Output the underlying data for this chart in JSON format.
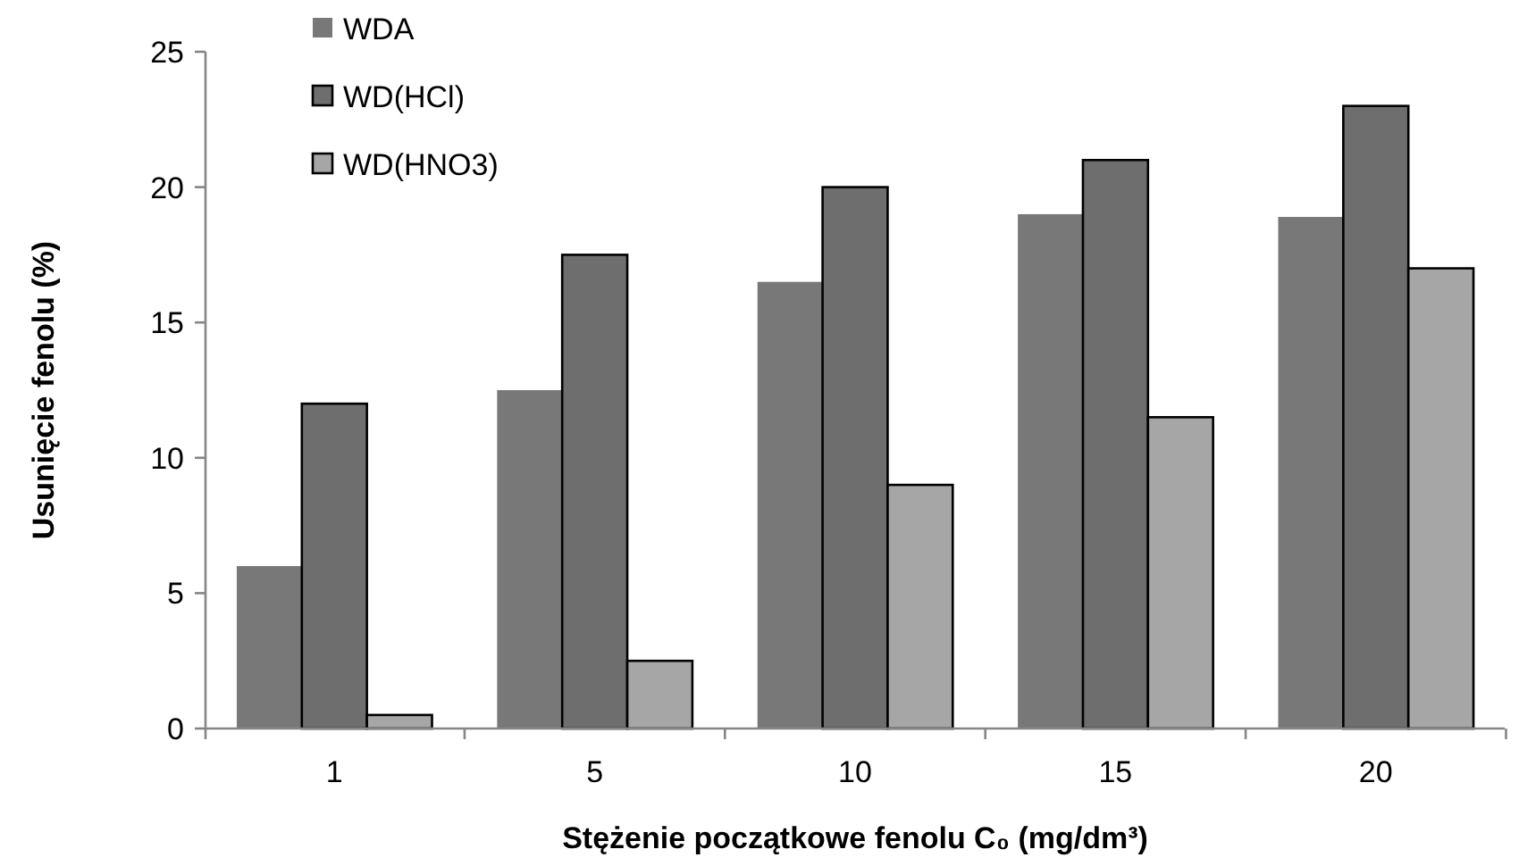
{
  "chart_data": {
    "type": "bar",
    "xlabel": "Stężenie początkowe fenolu C₀ (mg/dm³)",
    "ylabel": "Usunięcie fenolu (%)",
    "categories": [
      "1",
      "5",
      "10",
      "15",
      "20"
    ],
    "series": [
      {
        "name": "WDA",
        "color": "#787878",
        "values": [
          6,
          12.5,
          16.5,
          19,
          18.9
        ]
      },
      {
        "name": "WD(HCl)",
        "color": "#6e6e6e",
        "values": [
          12,
          17.5,
          20,
          21,
          23
        ]
      },
      {
        "name": "WD(HNO3)",
        "color": "#a6a6a6",
        "values": [
          0.5,
          2.5,
          9,
          11.5,
          17
        ]
      }
    ],
    "ylim": [
      0,
      25
    ],
    "yticks": [
      0,
      5,
      10,
      15,
      20,
      25
    ],
    "grid": false,
    "legend": "top left"
  }
}
